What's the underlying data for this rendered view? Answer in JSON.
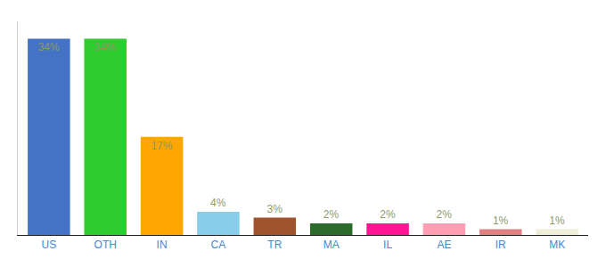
{
  "chart_data": {
    "type": "bar",
    "categories": [
      "US",
      "OTH",
      "IN",
      "CA",
      "TR",
      "MA",
      "IL",
      "AE",
      "IR",
      "MK"
    ],
    "values": [
      34,
      34,
      17,
      4,
      3,
      2,
      2,
      2,
      1,
      1
    ],
    "value_labels": [
      "34%",
      "34%",
      "17%",
      "4%",
      "3%",
      "2%",
      "2%",
      "2%",
      "1%",
      "1%"
    ],
    "colors": [
      "#4472c4",
      "#2ecc2e",
      "#ffa500",
      "#87ceeb",
      "#a0522d",
      "#2d6b2d",
      "#ff1493",
      "#ff9eb5",
      "#e08080",
      "#f0edd8"
    ],
    "ylim": [
      0,
      37
    ],
    "yticks": [],
    "grid": false,
    "data_labels": true,
    "tick_labels": "x"
  }
}
